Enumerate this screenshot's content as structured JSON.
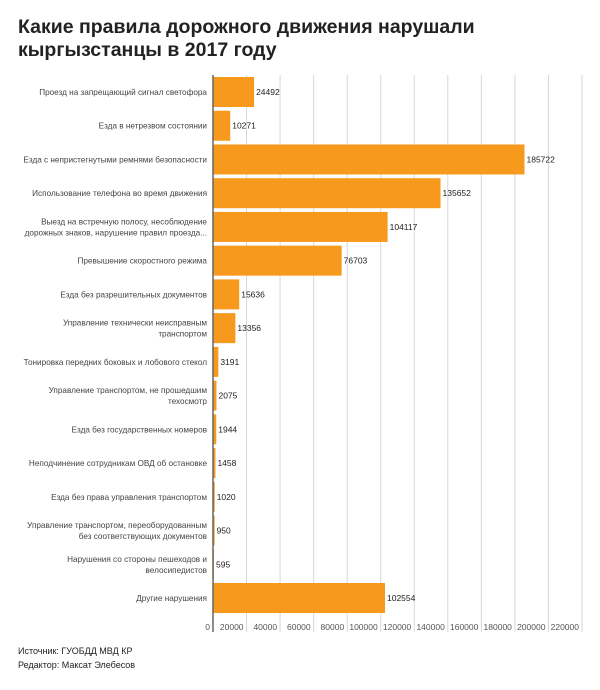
{
  "chart_data": {
    "type": "bar",
    "orientation": "horizontal",
    "title": "Какие правила дорожного движения нарушали кыргызстанцы в 2017 году",
    "categories": [
      [
        "Проезд на запрещающий сигнал светофора"
      ],
      [
        "Езда в нетрезвом состоянии"
      ],
      [
        "Езда с непристегнутыми ремнями безопасности"
      ],
      [
        "Использование телефона во время движения"
      ],
      [
        "Выезд на встречную полосу, несоблюдение",
        "дорожных знаков, нарушение правил проезда..."
      ],
      [
        "Превышение скоростного режима"
      ],
      [
        "Езда без разрешительных документов"
      ],
      [
        "Управление технически неисправным",
        "транспортом"
      ],
      [
        "Тонировка передних боковых и лобового стекол"
      ],
      [
        "Управление транспортом, не прошедшим",
        "техосмотр"
      ],
      [
        "Езда без государственных номеров"
      ],
      [
        "Неподчинение сотрудникам ОВД об остановке"
      ],
      [
        "Езда без права управления транспортом"
      ],
      [
        "Управление транспортом, переоборудованным",
        "без соответствующих документов"
      ],
      [
        "Нарушения со стороны пешеходов и",
        "велосипедистов"
      ],
      [
        "Другие нарушения"
      ]
    ],
    "values": [
      24492,
      10271,
      185722,
      135652,
      104117,
      76703,
      15636,
      13356,
      3191,
      2075,
      1944,
      1458,
      1020,
      950,
      595,
      102554
    ],
    "xlim": [
      0,
      220000
    ],
    "xticks": [
      0,
      20000,
      40000,
      60000,
      80000,
      100000,
      120000,
      140000,
      160000,
      180000,
      200000,
      220000
    ],
    "grid": true,
    "bar_color": "#f7991c"
  },
  "footer": {
    "source": "Источник: ГУОБДД МВД КР",
    "editor": "Редактор: Максат Элебесов"
  }
}
